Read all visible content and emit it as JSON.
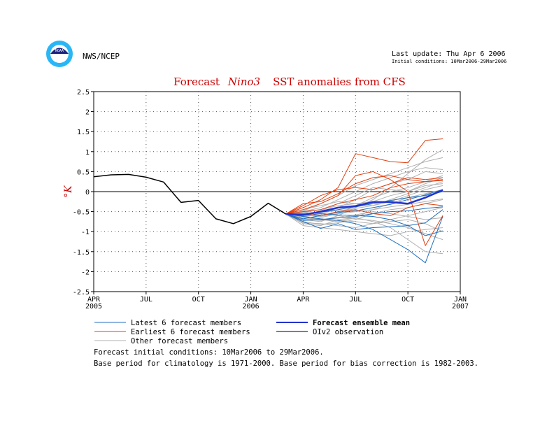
{
  "header": {
    "logo_text": "NOAA",
    "agency": "NWS/NCEP",
    "last_update": "Last update: Thu Apr  6 2006",
    "initial_conditions_small": "Initial conditions: 10Mar2006-29Mar2006"
  },
  "title": {
    "part1": "Forecast",
    "part2": "Nino3",
    "part3": "SST anomalies from CFS"
  },
  "chart_data": {
    "type": "line",
    "ylabel": "°K",
    "ylim": [
      -2.5,
      2.5
    ],
    "yticks": [
      "2.5",
      "2",
      "1.5",
      "1",
      "0.5",
      "0",
      "-0.5",
      "-1",
      "-1.5",
      "-2",
      "-2.5"
    ],
    "ytick_values": [
      2.5,
      2,
      1.5,
      1,
      0.5,
      0,
      -0.5,
      -1,
      -1.5,
      -2,
      -2.5
    ],
    "x_range_months": [
      "2005-04",
      "2007-01"
    ],
    "xticks": [
      {
        "label": "APR",
        "year": "2005",
        "month_index": 0
      },
      {
        "label": "JUL",
        "year": "",
        "month_index": 3
      },
      {
        "label": "OCT",
        "year": "",
        "month_index": 6
      },
      {
        "label": "JAN",
        "year": "2006",
        "month_index": 9
      },
      {
        "label": "APR",
        "year": "",
        "month_index": 12
      },
      {
        "label": "JUL",
        "year": "",
        "month_index": 15
      },
      {
        "label": "OCT",
        "year": "",
        "month_index": 18
      },
      {
        "label": "JAN",
        "year": "2007",
        "month_index": 21
      }
    ],
    "grid": true,
    "observation": {
      "name": "OIv2 observation",
      "color": "#000000",
      "months": [
        "2005-04",
        "2005-05",
        "2005-06",
        "2005-07",
        "2005-08",
        "2005-09",
        "2005-10",
        "2005-11",
        "2005-12",
        "2006-01",
        "2006-02",
        "2006-03"
      ],
      "values": [
        0.37,
        0.42,
        0.43,
        0.36,
        0.24,
        -0.27,
        -0.22,
        -0.68,
        -0.8,
        -0.62,
        -0.29,
        -0.56
      ]
    },
    "ensemble_mean": {
      "name": "Forecast ensemble mean",
      "color": "#2233cc",
      "months": [
        "2006-03",
        "2006-04",
        "2006-05",
        "2006-06",
        "2006-07",
        "2006-08",
        "2006-09",
        "2006-10",
        "2006-11",
        "2006-12"
      ],
      "values": [
        -0.56,
        -0.58,
        -0.5,
        -0.4,
        -0.36,
        -0.26,
        -0.26,
        -0.3,
        -0.15,
        0.04
      ]
    },
    "latest_members": {
      "name": "Latest 6 forecast members",
      "color": "#1f6fbf",
      "months": [
        "2006-03",
        "2006-04",
        "2006-05",
        "2006-06",
        "2006-07",
        "2006-08",
        "2006-09",
        "2006-10",
        "2006-11",
        "2006-12"
      ],
      "series": [
        [
          -0.56,
          -0.75,
          -0.92,
          -0.8,
          -0.95,
          -0.9,
          -0.88,
          -0.85,
          -1.1,
          -0.98
        ],
        [
          -0.56,
          -0.62,
          -0.68,
          -0.72,
          -0.8,
          -0.95,
          -1.2,
          -1.45,
          -1.78,
          -0.62
        ],
        [
          -0.56,
          -0.6,
          -0.55,
          -0.58,
          -0.6,
          -0.62,
          -0.7,
          -0.85,
          -0.78,
          -0.45
        ],
        [
          -0.56,
          -0.68,
          -0.6,
          -0.52,
          -0.48,
          -0.4,
          -0.32,
          -0.2,
          -0.08,
          0.05
        ],
        [
          -0.56,
          -0.58,
          -0.52,
          -0.45,
          -0.38,
          -0.3,
          -0.22,
          -0.15,
          -0.1,
          0.0
        ],
        [
          -0.56,
          -0.72,
          -0.7,
          -0.65,
          -0.62,
          -0.55,
          -0.5,
          -0.48,
          -0.42,
          -0.38
        ]
      ]
    },
    "earliest_members": {
      "name": "Earliest 6 forecast members",
      "color": "#e04010",
      "months": [
        "2006-03",
        "2006-04",
        "2006-05",
        "2006-06",
        "2006-07",
        "2006-08",
        "2006-09",
        "2006-10",
        "2006-11",
        "2006-12"
      ],
      "series": [
        [
          -0.56,
          -0.4,
          -0.2,
          0.1,
          0.95,
          0.85,
          0.75,
          0.72,
          1.28,
          1.32
        ],
        [
          -0.56,
          -0.45,
          -0.3,
          -0.1,
          0.4,
          0.5,
          0.3,
          0.0,
          -1.35,
          -0.6
        ],
        [
          -0.56,
          -0.3,
          -0.25,
          -0.05,
          0.2,
          0.35,
          0.4,
          0.3,
          0.25,
          0.3
        ],
        [
          -0.56,
          -0.5,
          -0.45,
          -0.3,
          -0.2,
          -0.1,
          0.1,
          0.2,
          0.25,
          0.28
        ],
        [
          -0.56,
          -0.55,
          -0.6,
          -0.5,
          -0.45,
          -0.55,
          -0.6,
          -0.4,
          -0.3,
          -0.35
        ],
        [
          -0.56,
          -0.35,
          -0.1,
          0.05,
          0.1,
          0.05,
          0.2,
          0.35,
          0.3,
          0.35
        ]
      ]
    },
    "other_members": {
      "name": "Other forecast members",
      "color": "#b0b0b0",
      "months": [
        "2006-03",
        "2006-04",
        "2006-05",
        "2006-06",
        "2006-07",
        "2006-08",
        "2006-09",
        "2006-10",
        "2006-11",
        "2006-12"
      ],
      "series": [
        [
          -0.56,
          -0.7,
          -0.75,
          -0.6,
          -0.4,
          -0.2,
          0.1,
          0.45,
          0.8,
          1.05
        ],
        [
          -0.56,
          -0.62,
          -0.58,
          -0.4,
          -0.2,
          0.05,
          0.2,
          0.3,
          0.5,
          0.45
        ],
        [
          -0.56,
          -0.8,
          -0.85,
          -0.7,
          -0.65,
          -0.75,
          -0.9,
          -1.2,
          -1.5,
          -1.55
        ],
        [
          -0.56,
          -0.52,
          -0.45,
          -0.35,
          -0.3,
          -0.25,
          -0.1,
          0.0,
          0.15,
          0.2
        ],
        [
          -0.56,
          -0.65,
          -0.7,
          -0.72,
          -0.75,
          -0.8,
          -0.7,
          -0.6,
          -0.5,
          -0.4
        ],
        [
          -0.56,
          -0.48,
          -0.3,
          -0.1,
          0.15,
          0.3,
          0.45,
          0.6,
          0.75,
          0.85
        ],
        [
          -0.56,
          -0.75,
          -0.82,
          -0.78,
          -0.7,
          -0.55,
          -0.45,
          -0.4,
          -0.3,
          -0.2
        ],
        [
          -0.56,
          -0.58,
          -0.62,
          -0.55,
          -0.5,
          -0.45,
          -0.38,
          -0.32,
          -0.25,
          -0.18
        ],
        [
          -0.56,
          -0.45,
          -0.35,
          -0.25,
          -0.3,
          -0.35,
          -0.2,
          -0.05,
          0.1,
          0.25
        ],
        [
          -0.56,
          -0.85,
          -0.9,
          -0.95,
          -1.0,
          -1.05,
          -1.1,
          -1.0,
          -0.95,
          -0.9
        ],
        [
          -0.56,
          -0.6,
          -0.48,
          -0.3,
          -0.1,
          0.1,
          0.05,
          0.0,
          0.2,
          0.35
        ],
        [
          -0.56,
          -0.68,
          -0.72,
          -0.66,
          -0.58,
          -0.5,
          -0.55,
          -0.62,
          -0.7,
          -0.65
        ],
        [
          -0.56,
          -0.5,
          -0.4,
          -0.2,
          0.0,
          0.2,
          0.35,
          0.5,
          0.6,
          0.55
        ],
        [
          -0.56,
          -0.78,
          -0.8,
          -0.85,
          -0.9,
          -0.8,
          -0.75,
          -0.7,
          -0.8,
          -1.0
        ],
        [
          -0.56,
          -0.55,
          -0.5,
          -0.48,
          -0.42,
          -0.35,
          -0.25,
          -0.1,
          0.05,
          0.15
        ],
        [
          -0.56,
          -0.72,
          -0.65,
          -0.55,
          -0.35,
          -0.15,
          0.0,
          0.1,
          0.25,
          0.4
        ],
        [
          -0.56,
          -0.62,
          -0.7,
          -0.75,
          -0.65,
          -0.45,
          -0.3,
          -0.15,
          -0.05,
          0.05
        ],
        [
          -0.56,
          -0.52,
          -0.55,
          -0.6,
          -0.68,
          -0.72,
          -0.8,
          -0.9,
          -1.05,
          -1.2
        ]
      ]
    }
  },
  "legend": {
    "latest": "Latest 6 forecast members",
    "earliest": "Earliest 6 forecast members",
    "other": "Other forecast members",
    "mean": "Forecast ensemble mean",
    "obs": "OIv2 observation"
  },
  "footer": {
    "line1": "Forecast initial conditions: 10Mar2006 to 29Mar2006.",
    "line2": "Base period for climatology is 1971-2000. Base period for bias correction is 1982-2003."
  }
}
